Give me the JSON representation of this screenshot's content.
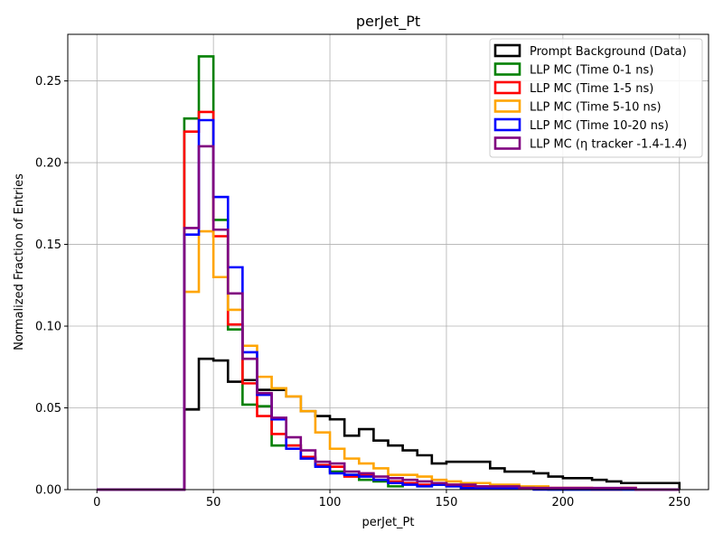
{
  "chart_data": {
    "type": "step-histogram",
    "title": "perJet_Pt",
    "xlabel": "perJet_Pt",
    "ylabel": "Normalized Fraction of Entries",
    "xlim": [
      -12.5,
      262.5
    ],
    "ylim": [
      0,
      0.2785
    ],
    "grid": true,
    "legend_position": "top-right",
    "xticks": [
      0,
      50,
      100,
      150,
      200,
      250
    ],
    "xtick_labels": [
      "0",
      "50",
      "100",
      "150",
      "200",
      "250"
    ],
    "yticks": [
      0,
      0.05,
      0.1,
      0.15,
      0.2,
      0.25
    ],
    "ytick_labels": [
      "0.00",
      "0.05",
      "0.10",
      "0.15",
      "0.20",
      "0.25"
    ],
    "bin_edges": [
      0,
      6.25,
      12.5,
      18.75,
      25,
      31.25,
      37.5,
      43.75,
      50,
      56.25,
      62.5,
      68.75,
      75,
      81.25,
      87.5,
      93.75,
      100,
      106.25,
      112.5,
      118.75,
      125,
      131.25,
      137.5,
      143.75,
      150,
      156.25,
      162.5,
      168.75,
      175,
      181.25,
      187.5,
      193.75,
      200,
      206.25,
      212.5,
      218.75,
      225,
      231.25,
      237.5,
      243.75,
      250
    ],
    "series": [
      {
        "name": "Prompt Background (Data)",
        "color": "#000000",
        "values": [
          0,
          0,
          0,
          0,
          0,
          0,
          0.049,
          0.08,
          0.079,
          0.066,
          0.067,
          0.061,
          0.061,
          0.057,
          0.048,
          0.045,
          0.043,
          0.033,
          0.037,
          0.03,
          0.027,
          0.024,
          0.021,
          0.016,
          0.017,
          0.017,
          0.017,
          0.013,
          0.011,
          0.011,
          0.01,
          0.008,
          0.007,
          0.007,
          0.006,
          0.005,
          0.004,
          0.004,
          0.004,
          0.004
        ]
      },
      {
        "name": "LLP MC (Time 0-1 ns)",
        "color": "#008000",
        "values": [
          0,
          0,
          0,
          0,
          0,
          0,
          0.227,
          0.265,
          0.165,
          0.098,
          0.052,
          0.051,
          0.027,
          0.027,
          0.019,
          0.015,
          0.011,
          0.009,
          0.006,
          0.005,
          0.002,
          0.004,
          0.002,
          0.003,
          0.002,
          0.001,
          0.001,
          0.001,
          0.001,
          0.001,
          0.001,
          0,
          0,
          0,
          0,
          0,
          0,
          0,
          0,
          0
        ]
      },
      {
        "name": "LLP MC (Time 1-5 ns)",
        "color": "#ff0000",
        "values": [
          0,
          0,
          0,
          0,
          0,
          0,
          0.219,
          0.231,
          0.155,
          0.101,
          0.065,
          0.045,
          0.034,
          0.027,
          0.02,
          0.015,
          0.014,
          0.008,
          0.009,
          0.006,
          0.005,
          0.004,
          0.003,
          0.004,
          0.003,
          0.002,
          0.002,
          0.002,
          0.001,
          0.001,
          0.001,
          0.001,
          0.001,
          0.001,
          0,
          0,
          0.001,
          0,
          0,
          0
        ]
      },
      {
        "name": "LLP MC (Time 5-10 ns)",
        "color": "#ffa500",
        "values": [
          0,
          0,
          0,
          0,
          0,
          0,
          0.121,
          0.158,
          0.13,
          0.11,
          0.088,
          0.069,
          0.062,
          0.057,
          0.048,
          0.035,
          0.025,
          0.019,
          0.016,
          0.013,
          0.009,
          0.009,
          0.008,
          0.006,
          0.005,
          0.004,
          0.004,
          0.003,
          0.003,
          0.002,
          0.002,
          0.001,
          0.001,
          0.001,
          0,
          0,
          0.001,
          0,
          0,
          0
        ]
      },
      {
        "name": "LLP MC (Time 10-20 ns)",
        "color": "#0000ff",
        "values": [
          0,
          0,
          0,
          0,
          0,
          0,
          0.156,
          0.226,
          0.179,
          0.136,
          0.084,
          0.058,
          0.043,
          0.025,
          0.019,
          0.014,
          0.01,
          0.009,
          0.008,
          0.006,
          0.004,
          0.003,
          0.002,
          0.003,
          0.002,
          0.001,
          0.001,
          0.001,
          0.001,
          0.001,
          0,
          0,
          0,
          0,
          0,
          0,
          0,
          0,
          0,
          0
        ]
      },
      {
        "name": "LLP MC (η tracker -1.4-1.4)",
        "color": "#800080",
        "values": [
          0,
          0,
          0,
          0,
          0,
          0,
          0.16,
          0.21,
          0.159,
          0.12,
          0.08,
          0.059,
          0.044,
          0.032,
          0.024,
          0.017,
          0.016,
          0.011,
          0.01,
          0.008,
          0.007,
          0.006,
          0.005,
          0.004,
          0.003,
          0.003,
          0.002,
          0.002,
          0.002,
          0.001,
          0.001,
          0.001,
          0.001,
          0.001,
          0.001,
          0.001,
          0.001,
          0,
          0,
          0
        ]
      }
    ]
  }
}
